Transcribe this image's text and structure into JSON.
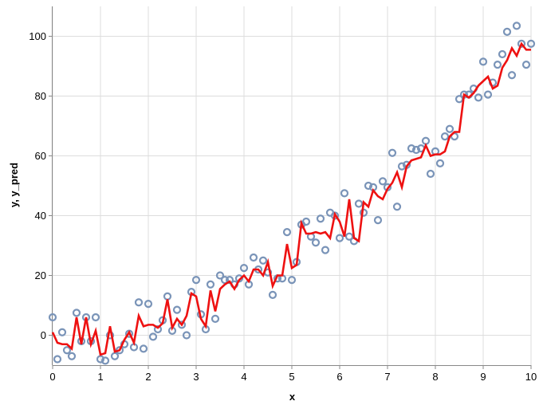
{
  "chart_data": {
    "type": "scatter",
    "xlabel": "x",
    "ylabel": "y, y_pred",
    "xlim": [
      0,
      10
    ],
    "ylim": [
      -10,
      110
    ],
    "x_ticks": [
      0,
      1,
      2,
      3,
      4,
      5,
      6,
      7,
      8,
      9,
      10
    ],
    "y_ticks": [
      0,
      20,
      40,
      60,
      80,
      100
    ],
    "grid": true,
    "legend": "none",
    "colors": {
      "points": "#7a94b8",
      "line": "#ee1111",
      "grid": "#dddddd",
      "axis": "#888888"
    },
    "series": [
      {
        "kind": "points",
        "x": [
          0,
          0.1,
          0.2,
          0.3,
          0.4,
          0.5,
          0.6,
          0.7,
          0.8,
          0.9,
          1.0,
          1.1,
          1.2,
          1.3,
          1.4,
          1.5,
          1.6,
          1.7,
          1.8,
          1.9,
          2.0,
          2.1,
          2.2,
          2.3,
          2.4,
          2.5,
          2.6,
          2.7,
          2.8,
          2.9,
          3.0,
          3.1,
          3.2,
          3.3,
          3.4,
          3.5,
          3.6,
          3.7,
          3.8,
          3.9,
          4.0,
          4.1,
          4.2,
          4.3,
          4.4,
          4.5,
          4.6,
          4.7,
          4.8,
          4.9,
          5.0,
          5.1,
          5.2,
          5.3,
          5.4,
          5.5,
          5.6,
          5.7,
          5.8,
          5.9,
          6.0,
          6.1,
          6.2,
          6.3,
          6.4,
          6.5,
          6.6,
          6.7,
          6.8,
          6.9,
          7.0,
          7.1,
          7.2,
          7.3,
          7.4,
          7.5,
          7.6,
          7.7,
          7.8,
          7.9,
          8.0,
          8.1,
          8.2,
          8.3,
          8.4,
          8.5,
          8.6,
          8.7,
          8.8,
          8.9,
          9.0,
          9.1,
          9.2,
          9.3,
          9.4,
          9.5,
          9.6,
          9.7,
          9.8,
          9.9,
          10.0
        ],
        "y": [
          6,
          -8,
          1,
          -5,
          -7,
          7.5,
          -2,
          6,
          -2,
          6,
          -8,
          -8.5,
          0,
          -7,
          -5,
          -3,
          0.5,
          -4,
          11,
          -4.5,
          10.5,
          -0.5,
          2,
          5,
          13,
          1.5,
          8.5,
          3.5,
          0,
          14.5,
          18.5,
          7,
          2,
          17,
          5.5,
          20,
          18.5,
          18.5,
          17,
          19,
          22.5,
          17,
          26,
          22,
          25,
          21,
          13.5,
          19,
          19,
          34.5,
          18.5,
          24.5,
          37,
          38,
          33,
          31,
          39,
          28.5,
          41,
          40,
          32.5,
          47.5,
          33,
          31.5,
          44,
          41,
          50,
          49.5,
          38.5,
          51.5,
          49.5,
          61,
          43,
          56.5,
          57,
          62.5,
          62,
          62.5,
          65,
          54,
          61.5,
          57.5,
          66.5,
          69,
          66.5,
          79,
          80.5,
          80.5,
          82.5,
          79.5,
          91.5,
          80.5,
          84.5,
          90.5,
          94,
          101.5,
          87,
          103.5,
          97.5,
          90.5,
          97.5
        ]
      },
      {
        "kind": "line",
        "x": [
          0,
          0.1,
          0.2,
          0.3,
          0.4,
          0.5,
          0.6,
          0.7,
          0.8,
          0.9,
          1.0,
          1.1,
          1.2,
          1.3,
          1.4,
          1.5,
          1.6,
          1.7,
          1.8,
          1.9,
          2.0,
          2.1,
          2.2,
          2.3,
          2.4,
          2.5,
          2.6,
          2.7,
          2.8,
          2.9,
          3.0,
          3.1,
          3.2,
          3.3,
          3.4,
          3.5,
          3.6,
          3.7,
          3.8,
          3.9,
          4.0,
          4.1,
          4.2,
          4.3,
          4.4,
          4.5,
          4.6,
          4.7,
          4.8,
          4.9,
          5.0,
          5.1,
          5.2,
          5.3,
          5.4,
          5.5,
          5.6,
          5.7,
          5.8,
          5.9,
          6.0,
          6.1,
          6.2,
          6.3,
          6.4,
          6.5,
          6.6,
          6.7,
          6.8,
          6.9,
          7.0,
          7.1,
          7.2,
          7.3,
          7.4,
          7.5,
          7.6,
          7.7,
          7.8,
          7.9,
          8.0,
          8.1,
          8.2,
          8.3,
          8.4,
          8.5,
          8.6,
          8.7,
          8.8,
          8.9,
          9.0,
          9.1,
          9.2,
          9.3,
          9.4,
          9.5,
          9.6,
          9.7,
          9.8,
          9.9,
          10.0
        ],
        "y": [
          1,
          -2.5,
          -3,
          -3,
          -4.5,
          6,
          -3,
          6,
          -3,
          1.5,
          -6.5,
          -6,
          3,
          -5.5,
          -5,
          -1.5,
          1,
          -2.5,
          6.5,
          3,
          3.5,
          3.5,
          2.5,
          4,
          12,
          2.5,
          5.5,
          3.5,
          6.5,
          14,
          13,
          5.5,
          3,
          15,
          8,
          15.5,
          17,
          18,
          15.5,
          18.5,
          20,
          18,
          22,
          22,
          20,
          24.5,
          16.5,
          20,
          20,
          30.5,
          22.5,
          23.5,
          37.5,
          34,
          34,
          34.5,
          34,
          34.5,
          32.5,
          40.5,
          38,
          33,
          45.5,
          32.5,
          31.5,
          44.5,
          43,
          48.5,
          46.5,
          45.5,
          49,
          51,
          54.5,
          49.5,
          56.5,
          58.5,
          59,
          59.5,
          63.5,
          60,
          60.5,
          60.5,
          61.5,
          66.5,
          68,
          68,
          80.5,
          79.5,
          81,
          83.5,
          85,
          86.5,
          82.5,
          83.5,
          89.5,
          92,
          96,
          93.5,
          97.5,
          95.5,
          95.5
        ]
      }
    ]
  }
}
